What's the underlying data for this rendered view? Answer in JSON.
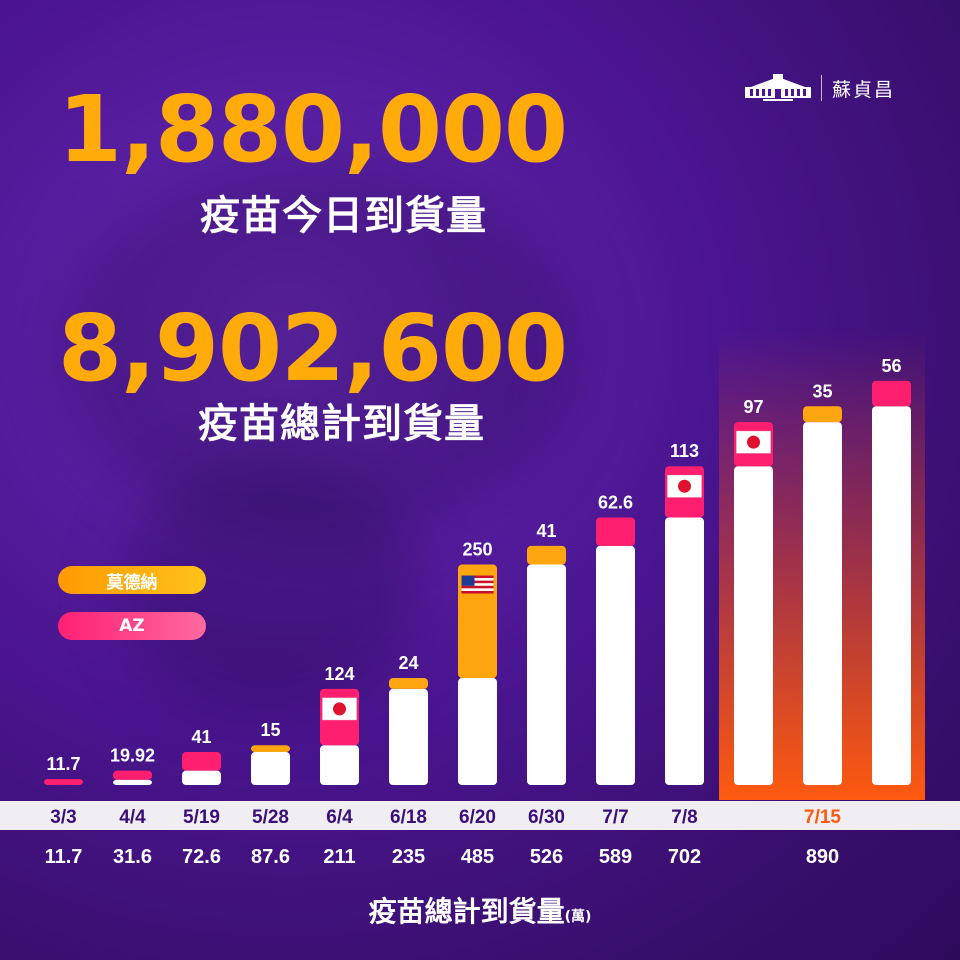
{
  "header": {
    "author": "蘇貞昌",
    "today_amount": "1,880,000",
    "today_label": "疫苗今日到貨量",
    "total_amount": "8,902,600",
    "total_label": "疫苗總計到貨量"
  },
  "legend": {
    "moderna": "莫德納",
    "az": "AZ"
  },
  "colors": {
    "moderna": "#ffa50f",
    "az": "#ff1f6e",
    "bar_base": "#ffffff",
    "date_text": "#3a0f7a",
    "highlight_date": "#ff5a10",
    "value_text": "#ffffff"
  },
  "chart_data": {
    "type": "bar",
    "title": "疫苗總計到貨量",
    "unit": "(萬)",
    "categories": [
      "3/3",
      "4/4",
      "5/19",
      "5/28",
      "6/4",
      "6/18",
      "6/20",
      "6/30",
      "7/7",
      "7/8",
      "7/15",
      "7/15",
      "7/15"
    ],
    "date_labels": [
      "3/3",
      "4/4",
      "5/19",
      "5/28",
      "6/4",
      "6/18",
      "6/20",
      "6/30",
      "7/7",
      "7/8",
      "7/15"
    ],
    "cumulative_labels": [
      "11.7",
      "31.6",
      "72.6",
      "87.6",
      "211",
      "235",
      "485",
      "526",
      "589",
      "702",
      "890"
    ],
    "increments": [
      11.7,
      19.92,
      41,
      15,
      124,
      24,
      250,
      41,
      62.6,
      113,
      97,
      35,
      56
    ],
    "increment_labels": [
      "11.7",
      "19.92",
      "41",
      "15",
      "124",
      "24",
      "250",
      "41",
      "62.6",
      "113",
      "97",
      "35",
      "56"
    ],
    "vaccine": [
      "az",
      "az",
      "az",
      "moderna",
      "az",
      "moderna",
      "moderna",
      "moderna",
      "az",
      "az",
      "az",
      "moderna",
      "az"
    ],
    "flag": [
      "",
      "",
      "",
      "",
      "japan",
      "",
      "usa",
      "",
      "",
      "japan",
      "japan",
      "",
      ""
    ],
    "highlighted": [
      false,
      false,
      false,
      false,
      false,
      false,
      false,
      false,
      false,
      false,
      true,
      true,
      true
    ],
    "series": [
      {
        "name": "莫德納",
        "values": [
          0,
          0,
          0,
          15,
          0,
          24,
          250,
          41,
          0,
          0,
          0,
          35,
          0
        ]
      },
      {
        "name": "AZ",
        "values": [
          11.7,
          19.92,
          41,
          0,
          124,
          0,
          0,
          0,
          62.6,
          113,
          97,
          0,
          56
        ]
      }
    ],
    "ylim": [
      0,
      900
    ]
  }
}
